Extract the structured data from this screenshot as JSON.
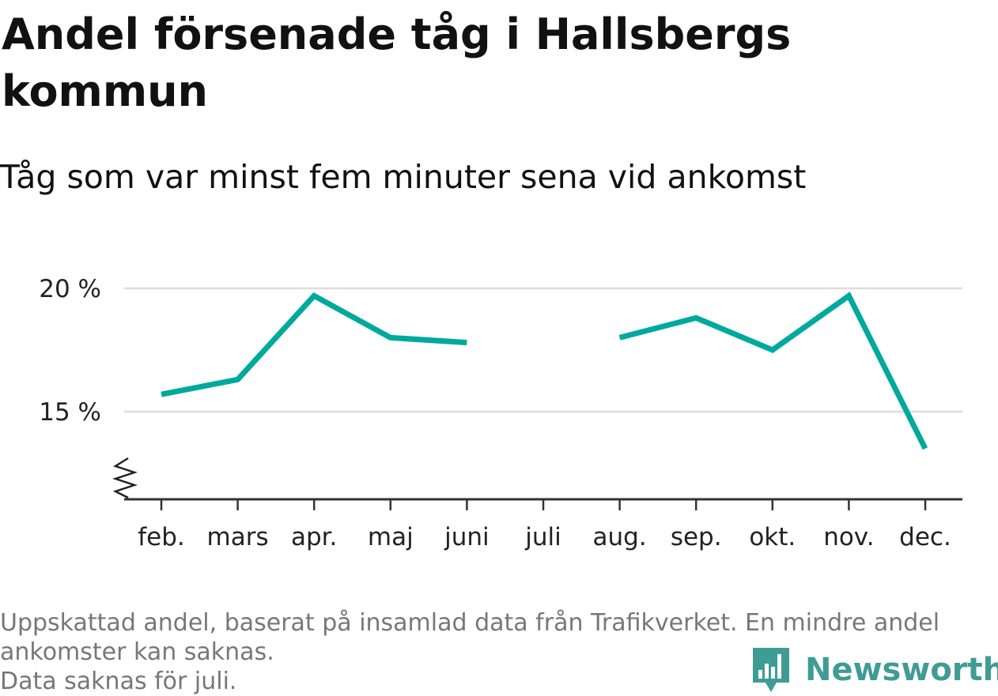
{
  "title": "Andel försenade tåg i Hallsbergs kommun",
  "subtitle": "Tåg som var minst fem minuter sena vid ankomst",
  "footnote": {
    "line1": "Uppskattad andel, baserat på insamlad data från Trafikverket. En mindre andel",
    "line2": "ankomster kan saknas.",
    "line3": "Data saknas för juli."
  },
  "logo": {
    "text": "Newsworthy",
    "color": "#3f9c95"
  },
  "chart_data": {
    "type": "line",
    "categories": [
      "feb.",
      "mars",
      "apr.",
      "maj",
      "juni",
      "juli",
      "aug.",
      "sep.",
      "okt.",
      "nov.",
      "dec."
    ],
    "series": [
      {
        "values": [
          15.7,
          16.3,
          19.7,
          18.0,
          17.8,
          null,
          18.0,
          18.8,
          17.5,
          19.7,
          13.5
        ]
      }
    ],
    "yticks": [
      {
        "value": 15,
        "label": "15 %"
      },
      {
        "value": 20,
        "label": "20 %"
      }
    ],
    "ylim": [
      11.4,
      20.5
    ],
    "y_axis_break": true,
    "grid": true,
    "line_color": "#00a99d",
    "title": "Andel försenade tåg i Hallsbergs kommun",
    "xlabel": "",
    "ylabel": ""
  }
}
